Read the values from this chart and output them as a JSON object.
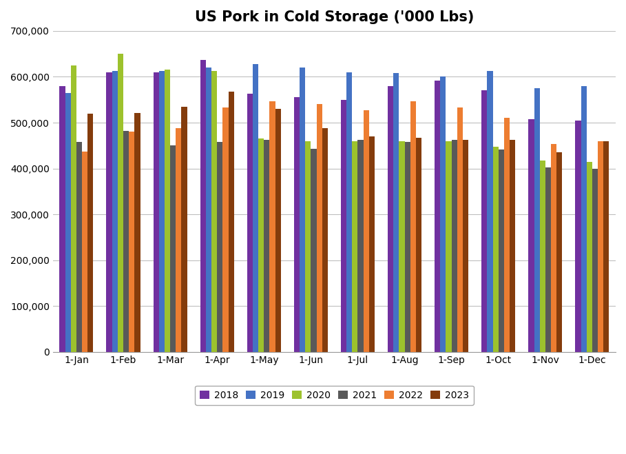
{
  "title": "US Pork in Cold Storage ('000 Lbs)",
  "months": [
    "1-Jan",
    "1-Feb",
    "1-Mar",
    "1-Apr",
    "1-May",
    "1-Jun",
    "1-Jul",
    "1-Aug",
    "1-Sep",
    "1-Oct",
    "1-Nov",
    "1-Dec"
  ],
  "series": {
    "2018": [
      580000,
      610000,
      610000,
      637000,
      563000,
      555000,
      550000,
      580000,
      592000,
      570000,
      507000,
      505000
    ],
    "2019": [
      565000,
      613000,
      612000,
      620000,
      628000,
      620000,
      610000,
      608000,
      600000,
      612000,
      575000,
      580000
    ],
    "2020": [
      625000,
      651000,
      615000,
      613000,
      465000,
      460000,
      460000,
      460000,
      460000,
      447000,
      418000,
      415000
    ],
    "2021": [
      458000,
      482000,
      450000,
      458000,
      462000,
      443000,
      462000,
      458000,
      462000,
      442000,
      402000,
      400000
    ],
    "2022": [
      437000,
      480000,
      488000,
      533000,
      547000,
      541000,
      527000,
      547000,
      533000,
      510000,
      453000,
      460000
    ],
    "2023": [
      519000,
      521000,
      535000,
      567000,
      530000,
      488000,
      470000,
      467000,
      462000,
      462000,
      435000,
      460000
    ]
  },
  "colors": {
    "2018": "#7030A0",
    "2019": "#4472C4",
    "2020": "#9DC22D",
    "2021": "#595959",
    "2022": "#ED7D31",
    "2023": "#843C0C"
  },
  "ylim": [
    0,
    700000
  ],
  "yticks": [
    0,
    100000,
    200000,
    300000,
    400000,
    500000,
    600000,
    700000
  ],
  "background_color": "#ffffff",
  "grid_color": "#bfbfbf",
  "bar_width": 0.12,
  "figsize": [
    9.09,
    6.59
  ],
  "dpi": 100
}
